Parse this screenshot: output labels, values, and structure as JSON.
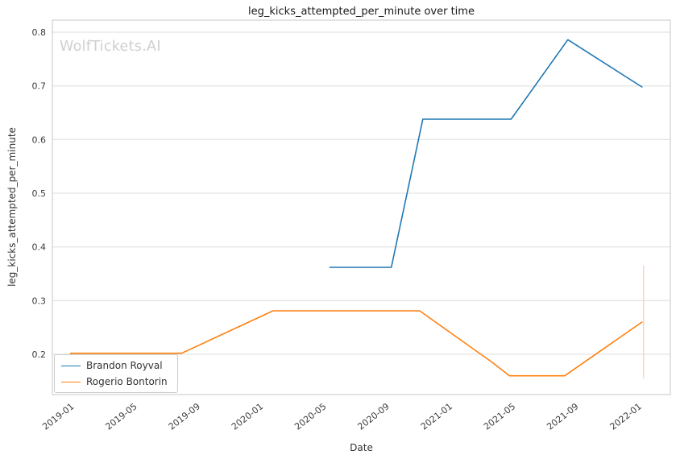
{
  "figure": {
    "watermark": "WolfTickets.AI"
  },
  "chart_data": {
    "type": "line",
    "title": "leg_kicks_attempted_per_minute over time",
    "xlabel": "Date",
    "ylabel": "leg_kicks_attempted_per_minute",
    "x_tick_labels": [
      "2019-01",
      "2019-05",
      "2019-09",
      "2020-01",
      "2020-05",
      "2020-09",
      "2021-01",
      "2021-05",
      "2021-09",
      "2022-01"
    ],
    "x_tick_months": [
      0,
      4,
      8,
      12,
      16,
      20,
      24,
      28,
      32,
      36
    ],
    "y_ticks": [
      0.2,
      0.3,
      0.4,
      0.5,
      0.6,
      0.7,
      0.8
    ],
    "xlim_months": [
      -1.0,
      38.2
    ],
    "ylim": [
      0.125,
      0.8225
    ],
    "grid_axis": "y",
    "grid": true,
    "legend_position": "lower left",
    "series": [
      {
        "name": "Brandon Royval",
        "color": "#1f77b4",
        "x_months": [
          16.6,
          20.5,
          22.5,
          28.1,
          31.7,
          36.4
        ],
        "values": [
          0.362,
          0.362,
          0.638,
          0.638,
          0.786,
          0.698
        ]
      },
      {
        "name": "Rogerio Bontorin",
        "color": "#ff7f0e",
        "x_months": [
          0.15,
          7.2,
          13.0,
          22.3,
          26.9,
          28.0,
          31.5,
          36.4
        ],
        "values": [
          0.202,
          0.202,
          0.281,
          0.281,
          0.185,
          0.16,
          0.16,
          0.26
        ]
      }
    ],
    "annotation_line": {
      "x_month": 36.5,
      "y_from": 0.155,
      "y_to": 0.365,
      "color": "#ffd3b0"
    }
  }
}
